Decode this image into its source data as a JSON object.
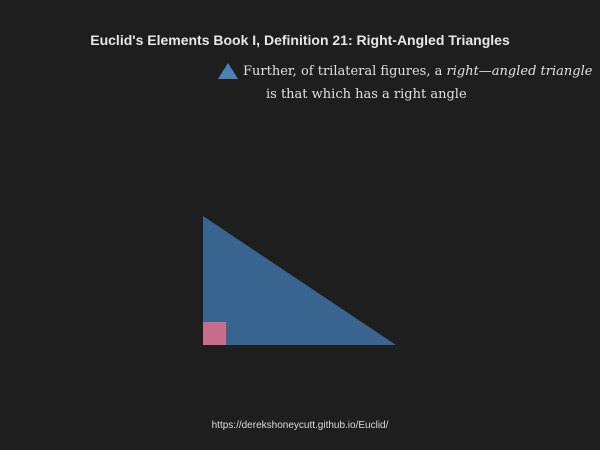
{
  "title": "Euclid's Elements Book I, Definition 21: Right-Angled Triangles",
  "definition": {
    "line1_prefix": "Further, of trilateral figures, a ",
    "line1_term": "right—angled triangle",
    "line2": "is that which has a right angle"
  },
  "footer": {
    "url": "https://derekshoneycutt.github.io/Euclid/"
  },
  "colors": {
    "background": "#1e1e1e",
    "triangle": "#3a6490",
    "legend_triangle": "#4a82b8",
    "right_angle_marker": "#c86e8c"
  },
  "icons": {
    "legend": "triangle-icon"
  }
}
